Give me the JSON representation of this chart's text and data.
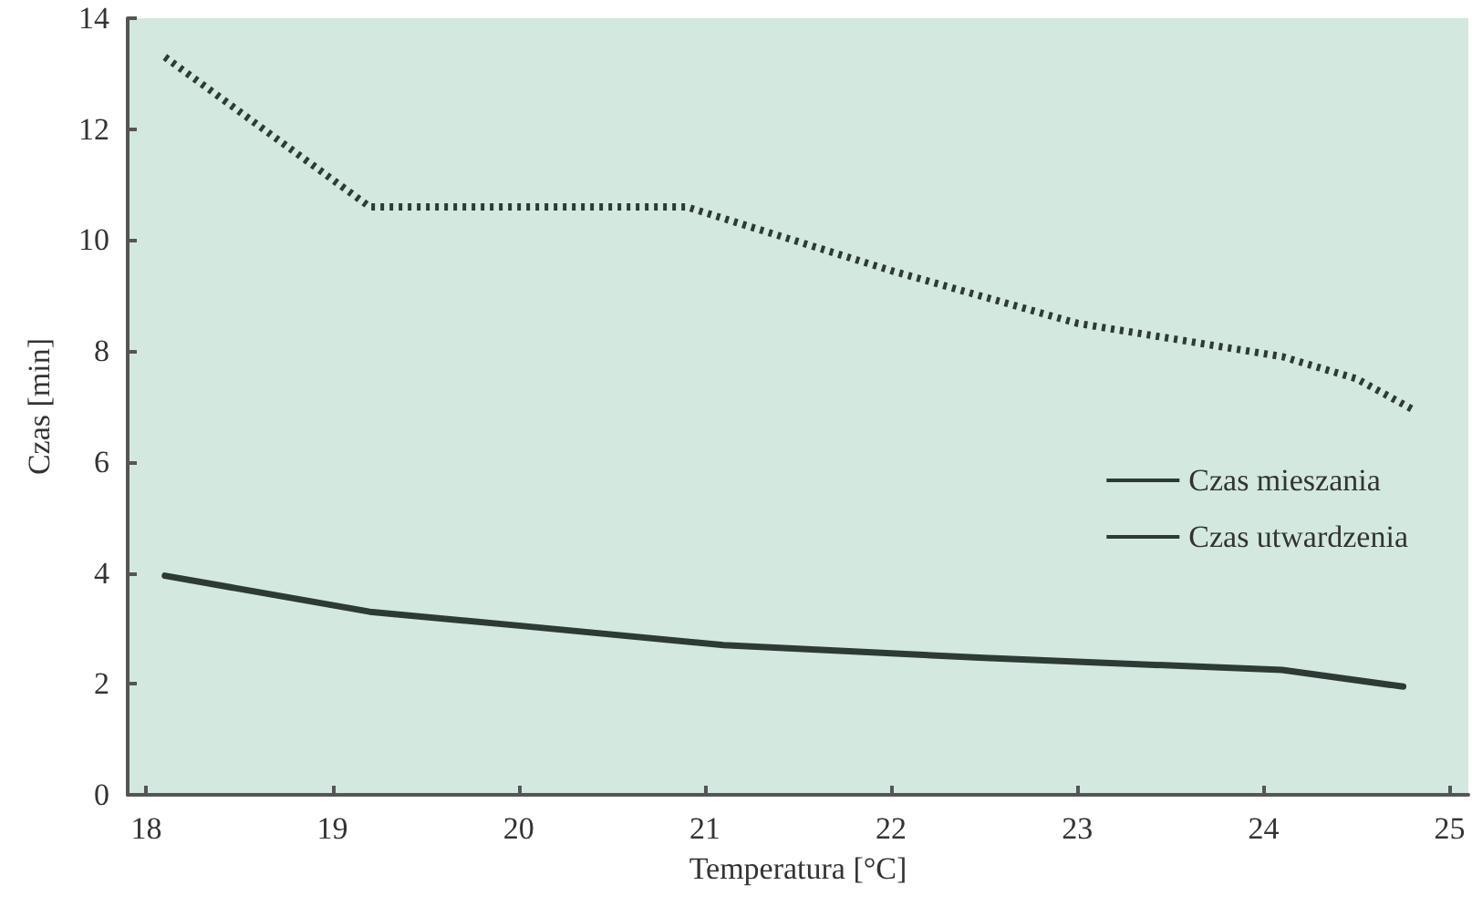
{
  "chart_data": {
    "type": "line",
    "xlabel": "Temperatura [°C]",
    "ylabel": "Czas [min]",
    "xlim": [
      17.9,
      25.1
    ],
    "xticks": [
      18,
      19,
      20,
      21,
      22,
      23,
      24,
      25
    ],
    "ylim": [
      0,
      14
    ],
    "yticks": [
      0,
      2,
      4,
      6,
      8,
      10,
      12,
      14
    ],
    "grid": false,
    "legend": "right",
    "marker": "none",
    "series": [
      {
        "name": "Czas mieszania",
        "color": "#2d3a36",
        "line_style": "solid",
        "x": [
          18.1,
          19.2,
          20,
          21.1,
          22,
          22.5,
          23,
          24.1,
          24.75
        ],
        "values": [
          3.95,
          3.3,
          3.05,
          2.7,
          2.55,
          2.47,
          2.4,
          2.25,
          1.95
        ]
      },
      {
        "name": "Czas utwardzenia",
        "color": "#2d3a36",
        "line_style": "dotted",
        "x": [
          18.1,
          19.2,
          20.9,
          22,
          23,
          24.1,
          24.5,
          24.8
        ],
        "values": [
          13.3,
          10.6,
          10.6,
          9.45,
          8.5,
          7.9,
          7.5,
          6.95
        ]
      }
    ]
  }
}
